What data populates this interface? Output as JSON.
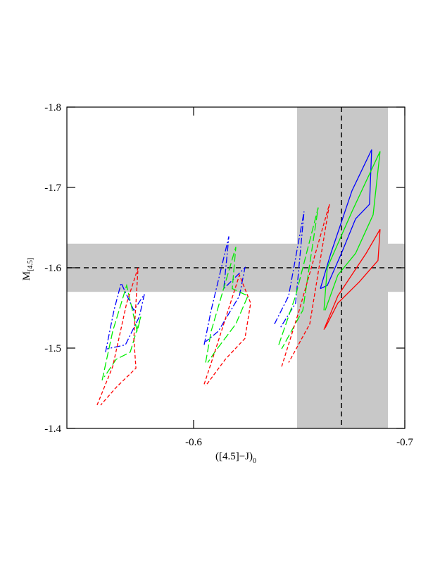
{
  "chart_data": {
    "type": "line",
    "xlabel": {
      "text": "([4.5]−J)",
      "sub": "0"
    },
    "ylabel": {
      "text": "M",
      "sub": "[4.5]"
    },
    "xlim": [
      -0.54,
      -0.7
    ],
    "ylim": [
      -1.4,
      -1.8
    ],
    "xticks": [
      -0.6,
      -0.7
    ],
    "yticks": [
      -1.8,
      -1.7,
      -1.6,
      -1.5,
      -1.4
    ],
    "band_color": "#c8c8c8",
    "bands": [
      {
        "axis": "y",
        "from": -1.63,
        "to": -1.57
      },
      {
        "axis": "x",
        "from": -0.649,
        "to": -0.692
      }
    ],
    "reference_lines": [
      {
        "axis": "x",
        "value": -0.67
      },
      {
        "axis": "y",
        "value": -1.6
      }
    ],
    "series": [
      {
        "color": "#0000ff",
        "style": "dashdot",
        "x": [
          -0.5583,
          -0.5623,
          -0.5657,
          -0.5717,
          -0.5767,
          -0.5743,
          -0.5677,
          -0.559
        ],
        "y": [
          -1.495,
          -1.547,
          -1.581,
          -1.547,
          -1.567,
          -1.539,
          -1.504,
          -1.499
        ]
      },
      {
        "color": "#00ee00",
        "style": "longdash",
        "x": [
          -0.5567,
          -0.5617,
          -0.5683,
          -0.5733,
          -0.575,
          -0.57,
          -0.5633,
          -0.5577
        ],
        "y": [
          -1.46,
          -1.521,
          -1.578,
          -1.521,
          -1.539,
          -1.495,
          -1.486,
          -1.464
        ]
      },
      {
        "color": "#ff0000",
        "style": "dashed",
        "x": [
          -0.5543,
          -0.5617,
          -0.5683,
          -0.5737,
          -0.5717,
          -0.5727,
          -0.5633,
          -0.556
        ],
        "y": [
          -1.429,
          -1.477,
          -1.556,
          -1.6,
          -1.512,
          -1.475,
          -1.451,
          -1.429
        ]
      },
      {
        "color": "#0000ff",
        "style": "dashdot",
        "x": [
          -0.605,
          -0.6083,
          -0.6167,
          -0.6143,
          -0.6243,
          -0.6217,
          -0.6117,
          -0.6057
        ],
        "y": [
          -1.504,
          -1.547,
          -1.639,
          -1.574,
          -1.6,
          -1.565,
          -1.521,
          -1.508
        ]
      },
      {
        "color": "#00ee00",
        "style": "longdash",
        "x": [
          -0.6057,
          -0.6083,
          -0.62,
          -0.6183,
          -0.6257,
          -0.62,
          -0.61,
          -0.6067
        ],
        "y": [
          -1.482,
          -1.521,
          -1.626,
          -1.574,
          -1.565,
          -1.53,
          -1.495,
          -1.482
        ]
      },
      {
        "color": "#ff0000",
        "style": "dashed",
        "x": [
          -0.605,
          -0.61,
          -0.6217,
          -0.627,
          -0.6243,
          -0.615,
          -0.6057
        ],
        "y": [
          -1.455,
          -1.495,
          -1.591,
          -1.556,
          -1.512,
          -1.486,
          -1.453
        ]
      },
      {
        "color": "#0000ff",
        "style": "dashdot",
        "x": [
          -0.6383,
          -0.645,
          -0.6523,
          -0.6483,
          -0.641
        ],
        "y": [
          -1.53,
          -1.565,
          -1.67,
          -1.556,
          -1.525
        ]
      },
      {
        "color": "#00ee00",
        "style": "longdash",
        "x": [
          -0.6403,
          -0.6483,
          -0.659,
          -0.6517,
          -0.6417
        ],
        "y": [
          -1.504,
          -1.565,
          -1.675,
          -1.547,
          -1.499
        ]
      },
      {
        "color": "#ff0000",
        "style": "dashed",
        "x": [
          -0.6417,
          -0.65,
          -0.6643,
          -0.655,
          -0.645
        ],
        "y": [
          -1.477,
          -1.547,
          -1.679,
          -1.53,
          -1.482
        ]
      },
      {
        "color": "#0000ff",
        "style": "solid",
        "x": [
          -0.66,
          -0.665,
          -0.675,
          -0.6843,
          -0.6833,
          -0.6767,
          -0.67,
          -0.6633,
          -0.66
        ],
        "y": [
          -1.574,
          -1.618,
          -1.696,
          -1.747,
          -1.679,
          -1.661,
          -1.618,
          -1.578,
          -1.574
        ]
      },
      {
        "color": "#00ee00",
        "style": "solid",
        "x": [
          -0.6617,
          -0.6633,
          -0.675,
          -0.6883,
          -0.685,
          -0.6767,
          -0.6683,
          -0.6623
        ],
        "y": [
          -1.547,
          -1.6,
          -1.67,
          -1.745,
          -1.666,
          -1.618,
          -1.591,
          -1.547
        ]
      },
      {
        "color": "#ff0000",
        "style": "solid",
        "x": [
          -0.6617,
          -0.6683,
          -0.6817,
          -0.6883,
          -0.6873,
          -0.6783,
          -0.6683,
          -0.6623
        ],
        "y": [
          -1.523,
          -1.565,
          -1.618,
          -1.648,
          -1.609,
          -1.582,
          -1.556,
          -1.525
        ]
      }
    ]
  }
}
